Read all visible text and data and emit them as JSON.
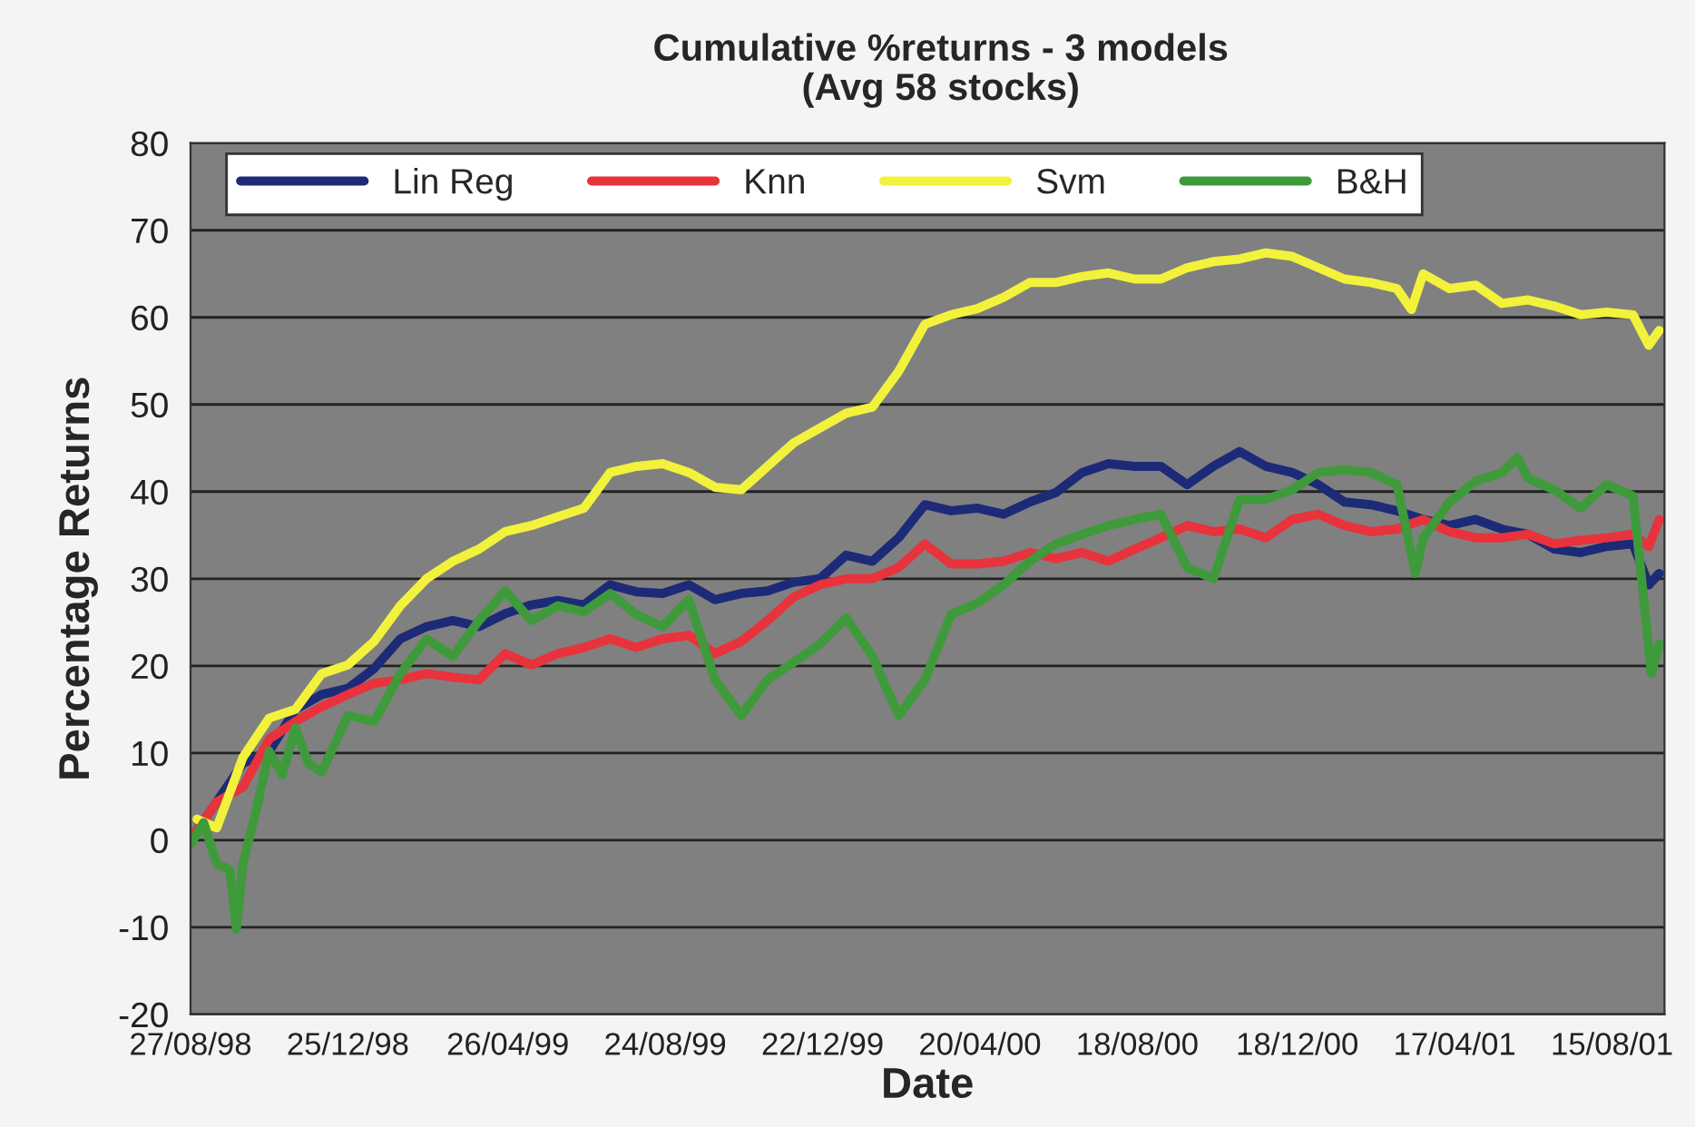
{
  "chart_data": {
    "type": "line",
    "title": "Cumulative %returns - 3 models",
    "subtitle": "(Avg 58 stocks)",
    "xlabel": "Date",
    "ylabel": "Percentage Returns",
    "xlim": [
      "1998-08-27",
      "2001-09-24"
    ],
    "ylim": [
      -20,
      80
    ],
    "xticks": [
      {
        "value": "1998-08-27",
        "label": "27/08/98"
      },
      {
        "value": "1998-12-25",
        "label": "25/12/98"
      },
      {
        "value": "1999-04-26",
        "label": "26/04/99"
      },
      {
        "value": "1999-08-24",
        "label": "24/08/99"
      },
      {
        "value": "1999-12-22",
        "label": "22/12/99"
      },
      {
        "value": "2000-04-20",
        "label": "20/04/00"
      },
      {
        "value": "2000-08-18",
        "label": "18/08/00"
      },
      {
        "value": "2000-12-18",
        "label": "18/12/00"
      },
      {
        "value": "2001-04-17",
        "label": "17/04/01"
      },
      {
        "value": "2001-08-15",
        "label": "15/08/01"
      }
    ],
    "yticks": [
      -20,
      -10,
      0,
      10,
      20,
      30,
      40,
      50,
      60,
      70,
      80
    ],
    "grid": "y",
    "legend": "top",
    "series": [
      {
        "name": "Lin Reg",
        "color": "#1c2a78",
        "x": [
          "1998-08-27",
          "1998-09-16",
          "1998-10-06",
          "1998-10-26",
          "1998-11-15",
          "1998-12-05",
          "1998-12-25",
          "1999-01-14",
          "1999-02-03",
          "1999-02-23",
          "1999-03-15",
          "1999-04-04",
          "1999-04-24",
          "1999-05-14",
          "1999-06-03",
          "1999-06-23",
          "1999-07-13",
          "1999-08-02",
          "1999-08-22",
          "1999-09-11",
          "1999-10-01",
          "1999-10-21",
          "1999-11-10",
          "1999-11-30",
          "1999-12-20",
          "2000-01-09",
          "2000-01-29",
          "2000-02-18",
          "2000-03-09",
          "2000-03-29",
          "2000-04-18",
          "2000-05-08",
          "2000-05-28",
          "2000-06-17",
          "2000-07-07",
          "2000-07-27",
          "2000-08-16",
          "2000-09-05",
          "2000-09-25",
          "2000-10-15",
          "2000-11-04",
          "2000-11-24",
          "2000-12-14",
          "2001-01-03",
          "2001-01-23",
          "2001-02-12",
          "2001-03-04",
          "2001-03-24",
          "2001-04-13",
          "2001-05-03",
          "2001-05-23",
          "2001-06-12",
          "2001-07-02",
          "2001-07-22",
          "2001-08-11",
          "2001-08-31",
          "2001-09-12",
          "2001-09-20"
        ],
        "values": [
          0,
          4.4,
          8.8,
          10.2,
          15,
          16.7,
          17.4,
          19.7,
          23.1,
          24.5,
          25.2,
          24.5,
          26,
          27,
          27.5,
          27,
          29.3,
          28.5,
          28.3,
          29.3,
          27.6,
          28.3,
          28.6,
          29.6,
          30,
          32.7,
          32,
          34.7,
          38.5,
          37.8,
          38.1,
          37.4,
          38.8,
          39.9,
          42.2,
          43.2,
          42.9,
          42.9,
          40.8,
          42.9,
          44.6,
          42.9,
          42.2,
          40.8,
          38.8,
          38.5,
          37.8,
          36.8,
          36.1,
          36.8,
          35.7,
          35.1,
          33.4,
          33,
          33.7,
          34,
          29.3,
          30.6
        ]
      },
      {
        "name": "Knn",
        "color": "#e8323c",
        "x": [
          "1998-08-27",
          "1998-09-16",
          "1998-10-06",
          "1998-10-26",
          "1998-11-15",
          "1998-12-05",
          "1998-12-25",
          "1999-01-14",
          "1999-02-03",
          "1999-02-23",
          "1999-03-15",
          "1999-04-04",
          "1999-04-24",
          "1999-05-14",
          "1999-06-03",
          "1999-06-23",
          "1999-07-13",
          "1999-08-02",
          "1999-08-22",
          "1999-09-11",
          "1999-10-01",
          "1999-10-21",
          "1999-11-10",
          "1999-11-30",
          "1999-12-20",
          "2000-01-09",
          "2000-01-29",
          "2000-02-18",
          "2000-03-09",
          "2000-03-29",
          "2000-04-18",
          "2000-05-08",
          "2000-05-28",
          "2000-06-17",
          "2000-07-07",
          "2000-07-27",
          "2000-08-16",
          "2000-09-05",
          "2000-09-25",
          "2000-10-15",
          "2000-11-04",
          "2000-11-24",
          "2000-12-14",
          "2001-01-03",
          "2001-01-23",
          "2001-02-12",
          "2001-03-04",
          "2001-03-24",
          "2001-04-13",
          "2001-05-03",
          "2001-05-23",
          "2001-06-12",
          "2001-07-02",
          "2001-07-22",
          "2001-08-11",
          "2001-08-31",
          "2001-09-12",
          "2001-09-20"
        ],
        "values": [
          0,
          4.4,
          6.1,
          11.6,
          13.6,
          15.3,
          16.7,
          18,
          18.4,
          19.1,
          18.7,
          18.4,
          21.4,
          20.1,
          21.4,
          22.1,
          23.1,
          22.1,
          23.1,
          23.5,
          21.4,
          22.8,
          25.2,
          27.9,
          29.3,
          30,
          30,
          31.3,
          34,
          31.7,
          31.7,
          32,
          33,
          32.3,
          33,
          32,
          33.4,
          34.7,
          36.1,
          35.4,
          35.7,
          34.7,
          36.8,
          37.4,
          36.1,
          35.4,
          35.7,
          36.8,
          35.4,
          34.7,
          34.7,
          35.1,
          34,
          34.4,
          34.7,
          35.1,
          33.7,
          36.8
        ]
      },
      {
        "name": "Svm",
        "color": "#f2f23c",
        "x": [
          "1998-09-01",
          "1998-09-16",
          "1998-10-06",
          "1998-10-26",
          "1998-11-15",
          "1998-12-05",
          "1998-12-25",
          "1999-01-14",
          "1999-02-03",
          "1999-02-23",
          "1999-03-15",
          "1999-04-04",
          "1999-04-24",
          "1999-05-14",
          "1999-06-03",
          "1999-06-23",
          "1999-07-13",
          "1999-08-02",
          "1999-08-22",
          "1999-09-11",
          "1999-10-01",
          "1999-10-21",
          "1999-11-10",
          "1999-11-30",
          "1999-12-20",
          "2000-01-09",
          "2000-01-29",
          "2000-02-18",
          "2000-03-09",
          "2000-03-29",
          "2000-04-18",
          "2000-05-08",
          "2000-05-28",
          "2000-06-17",
          "2000-07-07",
          "2000-07-27",
          "2000-08-16",
          "2000-09-05",
          "2000-09-25",
          "2000-10-15",
          "2000-11-04",
          "2000-11-24",
          "2000-12-14",
          "2001-01-03",
          "2001-01-23",
          "2001-02-12",
          "2001-03-04",
          "2001-03-15",
          "2001-03-24",
          "2001-04-13",
          "2001-05-03",
          "2001-05-23",
          "2001-06-12",
          "2001-07-02",
          "2001-07-22",
          "2001-08-11",
          "2001-08-31",
          "2001-09-12",
          "2001-09-20"
        ],
        "values": [
          2.4,
          1.4,
          9.5,
          14,
          15,
          19.1,
          20.1,
          22.8,
          26.9,
          30,
          32,
          33.4,
          35.4,
          36.1,
          37.1,
          38.1,
          42.2,
          42.9,
          43.2,
          42.2,
          40.5,
          40.2,
          42.9,
          45.6,
          47.3,
          49,
          49.7,
          53.8,
          59.2,
          60.3,
          61,
          62.3,
          64,
          64,
          64.7,
          65.1,
          64.4,
          64.4,
          65.7,
          66.4,
          66.7,
          67.4,
          67,
          65.7,
          64.4,
          64,
          63.3,
          60.9,
          65,
          63.3,
          63.7,
          61.6,
          62,
          61.3,
          60.3,
          60.6,
          60.3,
          56.8,
          58.5
        ]
      },
      {
        "name": "B&H",
        "color": "#3f9a3c",
        "x": [
          "1998-08-27",
          "1998-09-06",
          "1998-09-16",
          "1998-09-26",
          "1998-10-01",
          "1998-10-06",
          "1998-10-16",
          "1998-10-26",
          "1998-11-05",
          "1998-11-15",
          "1998-11-25",
          "1998-12-05",
          "1998-12-25",
          "1999-01-14",
          "1999-02-03",
          "1999-02-23",
          "1999-03-15",
          "1999-04-04",
          "1999-04-24",
          "1999-05-14",
          "1999-06-03",
          "1999-06-23",
          "1999-07-13",
          "1999-08-02",
          "1999-08-22",
          "1999-09-11",
          "1999-10-01",
          "1999-10-21",
          "1999-11-10",
          "1999-11-30",
          "1999-12-20",
          "2000-01-09",
          "2000-01-29",
          "2000-02-18",
          "2000-03-09",
          "2000-03-29",
          "2000-04-18",
          "2000-05-08",
          "2000-05-28",
          "2000-06-17",
          "2000-07-07",
          "2000-07-27",
          "2000-08-16",
          "2000-09-05",
          "2000-09-25",
          "2000-10-15",
          "2000-11-04",
          "2000-11-24",
          "2000-12-14",
          "2001-01-03",
          "2001-01-23",
          "2001-02-12",
          "2001-03-04",
          "2001-03-18",
          "2001-03-24",
          "2001-04-13",
          "2001-05-03",
          "2001-05-23",
          "2001-06-04",
          "2001-06-12",
          "2001-07-02",
          "2001-07-22",
          "2001-08-11",
          "2001-08-31",
          "2001-09-07",
          "2001-09-14",
          "2001-09-20"
        ],
        "values": [
          -0.5,
          2,
          -2.7,
          -3.4,
          -10.2,
          -2.7,
          3.4,
          10.2,
          7.5,
          12.9,
          8.8,
          7.8,
          14.3,
          13.6,
          19.1,
          23.1,
          21.1,
          25.2,
          28.6,
          25.2,
          26.9,
          26.2,
          28.3,
          25.9,
          24.5,
          27.6,
          18.4,
          14.3,
          18.4,
          20.4,
          22.5,
          25.5,
          21.1,
          14.3,
          18.4,
          25.9,
          27.2,
          29.3,
          32,
          34,
          35.1,
          36.1,
          36.8,
          37.4,
          31.3,
          30,
          39.1,
          39.1,
          40.2,
          42.2,
          42.5,
          42.2,
          40.8,
          30.6,
          34.7,
          38.8,
          41.2,
          42.2,
          43.9,
          41.5,
          40.2,
          38.1,
          40.8,
          39.5,
          29.3,
          19.1,
          22.5
        ]
      }
    ]
  }
}
